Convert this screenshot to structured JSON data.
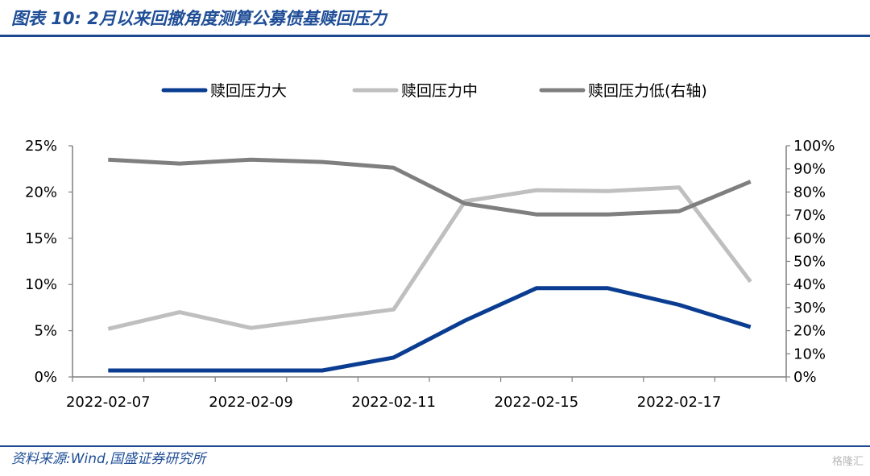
{
  "header": {
    "title": "图表 10:   2月以来回撤角度测算公募债基赎回压力"
  },
  "footer": {
    "source": "资料来源:Wind,国盛证券研究所",
    "watermark": "格隆汇"
  },
  "colors": {
    "brand_blue": "#1c4891",
    "series_high": "#0a3d91",
    "series_mid": "#bfbfbf",
    "series_low": "#7f7f7f"
  },
  "chart_data": {
    "type": "line",
    "title": "",
    "legend_position": "top-center",
    "grid": false,
    "x_tick_labels": [
      "2022-02-07",
      "2022-02-09",
      "2022-02-11",
      "2022-02-15",
      "2022-02-17"
    ],
    "x": [
      "2022-02-07",
      "2022-02-08",
      "2022-02-09",
      "2022-02-10",
      "2022-02-11",
      "2022-02-14",
      "2022-02-15",
      "2022-02-16",
      "2022-02-17",
      "2022-02-18"
    ],
    "y_left": {
      "min": 0,
      "max": 25,
      "tick_labels": [
        "0%",
        "5%",
        "10%",
        "15%",
        "20%",
        "25%"
      ]
    },
    "y_right": {
      "min": 0,
      "max": 100,
      "tick_labels": [
        "0%",
        "10%",
        "20%",
        "30%",
        "40%",
        "50%",
        "60%",
        "70%",
        "80%",
        "90%",
        "100%"
      ]
    },
    "series": [
      {
        "name": "赎回压力大",
        "axis": "left",
        "color": "#0a3d91",
        "values": [
          0.7,
          0.7,
          0.7,
          0.7,
          2.1,
          6.1,
          9.6,
          9.6,
          7.8,
          5.4
        ]
      },
      {
        "name": "赎回压力中",
        "axis": "left",
        "color": "#bfbfbf",
        "values": [
          5.2,
          7.0,
          5.3,
          6.3,
          7.3,
          19.0,
          20.2,
          20.1,
          20.5,
          10.3
        ]
      },
      {
        "name": "赎回压力低(右轴)",
        "axis": "right",
        "color": "#7f7f7f",
        "values": [
          94.0,
          92.3,
          94.0,
          93.0,
          90.5,
          75.0,
          70.3,
          70.3,
          71.7,
          84.5
        ]
      }
    ]
  }
}
